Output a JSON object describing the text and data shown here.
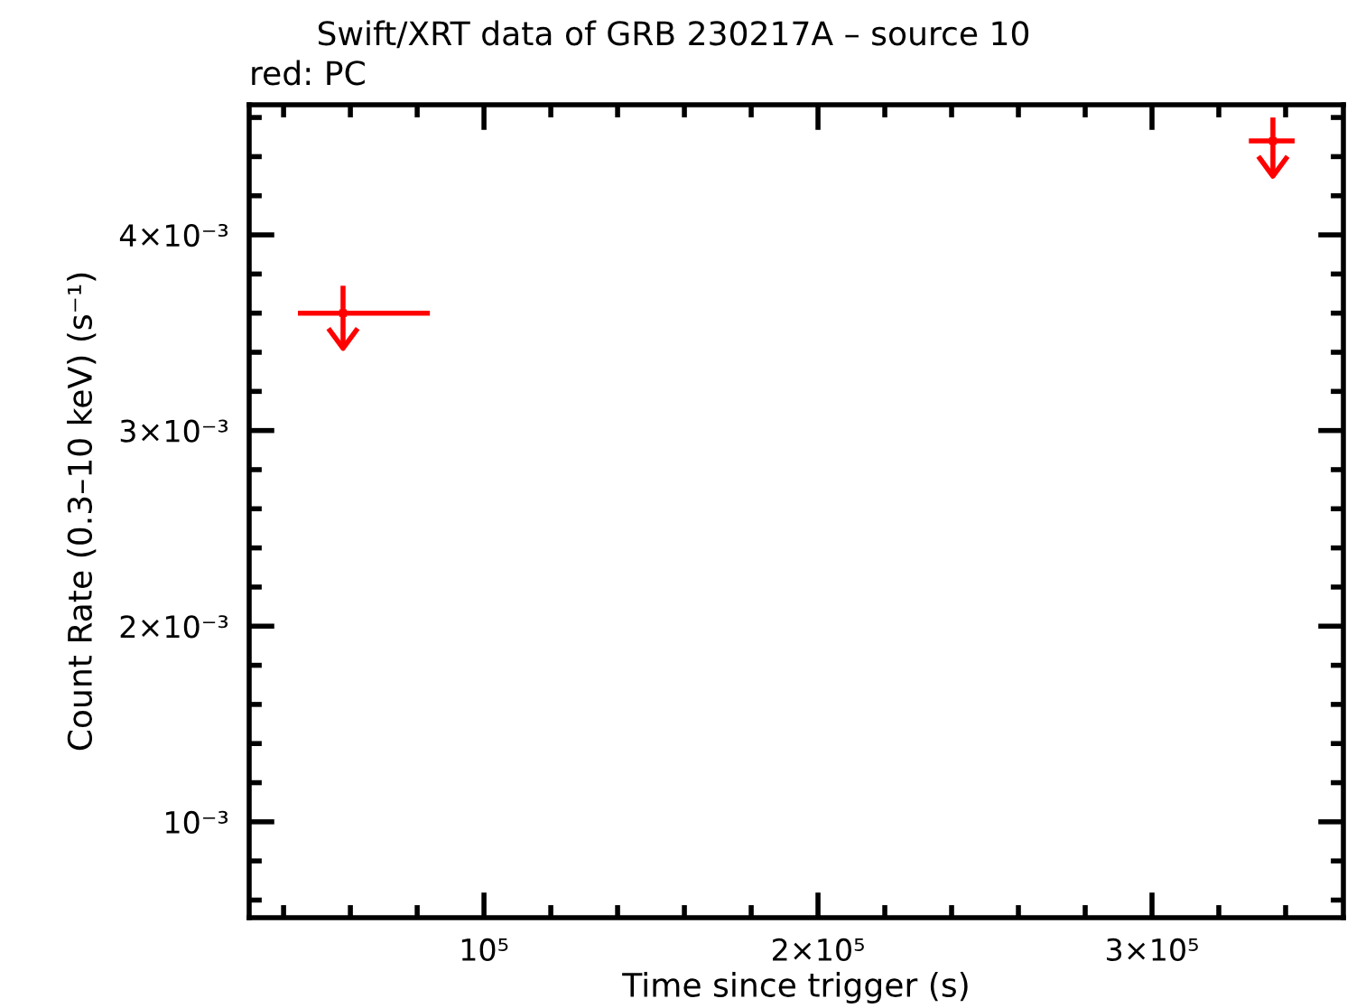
{
  "chart_data": {
    "type": "scatter",
    "title": "Swift/XRT data of GRB 230217A – source 10",
    "subtitle": "red: PC",
    "xlabel": "Time since trigger (s)",
    "ylabel": "Count Rate (0.3–10 keV) (s⁻¹)",
    "grid": false,
    "legend": false,
    "series": [
      {
        "color": "#ff0000",
        "x": [
          57800,
          336200
        ],
        "values": [
          0.0036,
          0.00448
        ],
        "xerrors": [
          [
            44300,
            83800
          ],
          [
            329000,
            342700
          ]
        ],
        "errors": [
          [
            0.00342,
            0.00374
          ],
          [
            0.0043,
            0.0046
          ]
        ]
      }
    ],
    "xlim": [
      29700,
      357300
    ],
    "xticks": [
      {
        "value": 100000,
        "label": "10⁵"
      },
      {
        "value": 200000,
        "label": "2×10⁵"
      },
      {
        "value": 300000,
        "label": "3×10⁵"
      }
    ],
    "ylim": [
      0.00051,
      0.004665
    ],
    "yticks": [
      {
        "value": 0.001,
        "label": "10⁻³"
      },
      {
        "value": 0.002,
        "label": "2×10⁻³"
      },
      {
        "value": 0.003,
        "label": "3×10⁻³"
      },
      {
        "value": 0.004,
        "label": "4×10⁻³"
      }
    ]
  }
}
